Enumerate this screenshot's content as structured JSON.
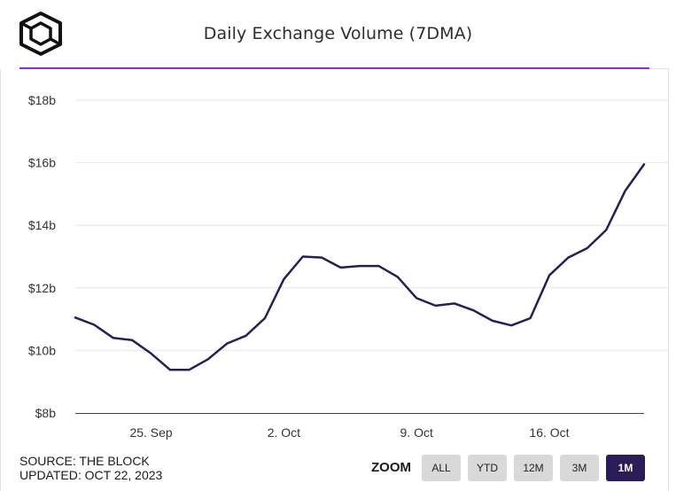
{
  "header": {
    "title": "Daily Exchange Volume (7DMA)",
    "colors": {
      "divider": "#8a2be2",
      "line": "#2a1d56"
    }
  },
  "chart_data": {
    "type": "line",
    "title": "Daily Exchange Volume (7DMA)",
    "xlabel": "",
    "ylabel": "",
    "ylim": [
      8,
      18
    ],
    "yticks": [
      8,
      10,
      12,
      14,
      16,
      18
    ],
    "ytick_labels": [
      "$8b",
      "$10b",
      "$12b",
      "$14b",
      "$16b",
      "$18b"
    ],
    "x_tick_labels": [
      "25. Sep",
      "2. Oct",
      "9. Oct",
      "16. Oct"
    ],
    "x_tick_positions": [
      4,
      11,
      18,
      25
    ],
    "grid": true,
    "x_range": [
      0,
      30
    ],
    "series": [
      {
        "name": "Daily Exchange Volume (7DMA)",
        "x": [
          0,
          1,
          2,
          3,
          4,
          5,
          6,
          7,
          8,
          9,
          10,
          11,
          12,
          13,
          14,
          15,
          16,
          17,
          18,
          19,
          20,
          21,
          22,
          23,
          24,
          25,
          26,
          27,
          28,
          29,
          30
        ],
        "values": [
          11.05,
          10.82,
          10.4,
          10.33,
          9.9,
          9.38,
          9.38,
          9.72,
          10.22,
          10.47,
          11.03,
          12.28,
          13.0,
          12.97,
          12.65,
          12.7,
          12.7,
          12.35,
          11.67,
          11.43,
          11.5,
          11.28,
          10.95,
          10.8,
          11.03,
          12.4,
          12.97,
          13.27,
          13.85,
          15.1,
          15.95
        ]
      }
    ]
  },
  "footer": {
    "source": "SOURCE: THE BLOCK",
    "updated": "UPDATED: OCT 22, 2023"
  },
  "zoom": {
    "label": "ZOOM",
    "buttons": [
      {
        "label": "ALL"
      },
      {
        "label": "YTD"
      },
      {
        "label": "12M"
      },
      {
        "label": "3M"
      },
      {
        "label": "1M",
        "active": true
      }
    ]
  }
}
